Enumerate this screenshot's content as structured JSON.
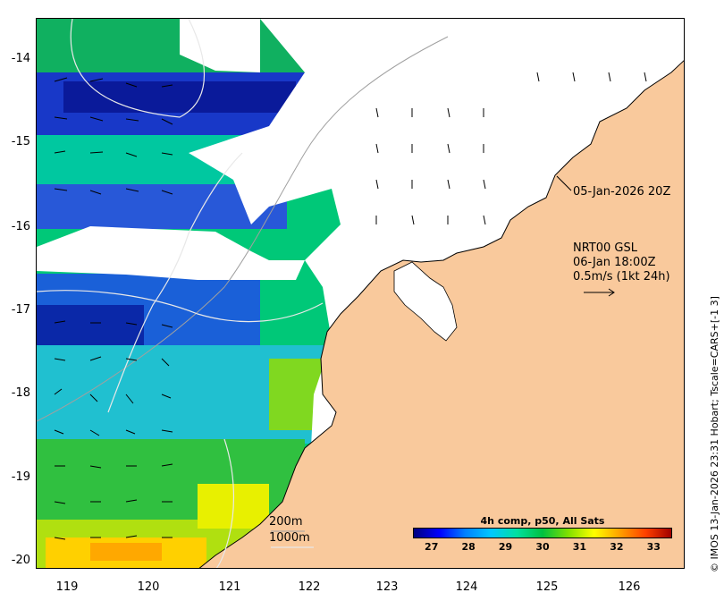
{
  "axes": {
    "lon_ticks": [
      "119",
      "120",
      "121",
      "122",
      "123",
      "124",
      "125",
      "126"
    ],
    "lat_ticks": [
      "-14",
      "-15",
      "-16",
      "-17",
      "-18",
      "-19",
      "-20"
    ],
    "lon_range": [
      118.6,
      126.7
    ],
    "lat_range": [
      -13.55,
      -20.15
    ]
  },
  "annotations": {
    "sat_pass_time": "05-Jan-2026 20Z",
    "current_model": "NRT00 GSL",
    "current_time": "06-Jan 18:00Z",
    "vector_scale": "0.5m/s (1kt 24h)"
  },
  "contours": {
    "label_200m": "200m",
    "label_1000m": "1000m"
  },
  "colorbar": {
    "title": "4h comp, p50, All Sats",
    "ticks": [
      "27",
      "28",
      "29",
      "30",
      "31",
      "32",
      "33"
    ],
    "range": [
      26.5,
      33.5
    ]
  },
  "credit": "© IMOS 13-Jan-2026 23:31 Hobart; Tscale=CARS+[-1 3]",
  "colors": {
    "land": "#f9c99c",
    "cloud": "#ffffff",
    "sst_scale": [
      "#00007f",
      "#0000ff",
      "#0080ff",
      "#00c8ff",
      "#00e0a0",
      "#00c040",
      "#80e000",
      "#ffff00",
      "#ffa000",
      "#ff4000",
      "#a00000"
    ]
  }
}
